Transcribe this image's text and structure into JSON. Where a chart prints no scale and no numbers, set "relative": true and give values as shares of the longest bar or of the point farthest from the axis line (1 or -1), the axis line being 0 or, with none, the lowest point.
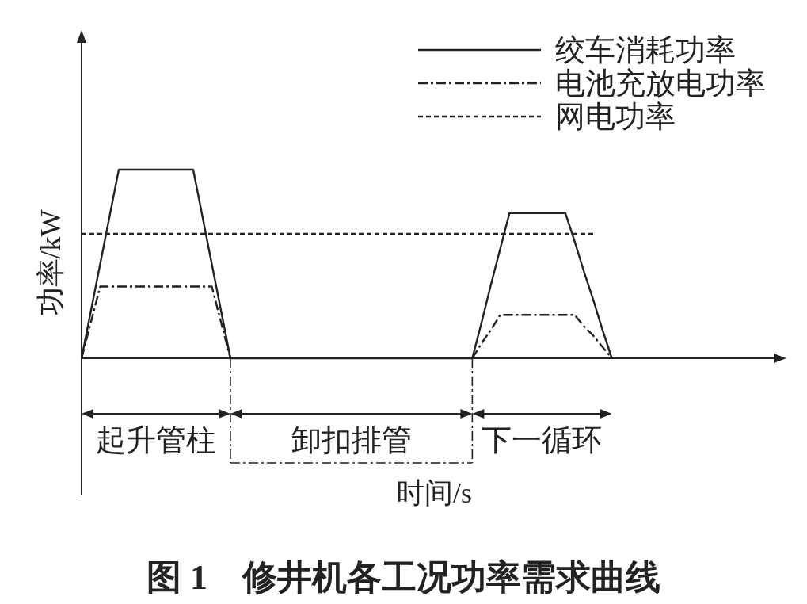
{
  "chart_data": {
    "type": "line",
    "relative": true,
    "title": "图 1　修井机各工况功率需求曲线",
    "xlabel": "时间/s",
    "ylabel": "功率/kW",
    "legend": "top right",
    "categories": [
      null,
      null,
      null,
      null,
      null,
      null,
      null,
      null,
      null,
      null,
      null,
      null,
      null,
      null,
      null,
      null,
      null,
      null,
      null,
      null,
      null,
      null,
      null,
      null,
      null,
      null,
      null,
      null,
      null,
      null,
      null,
      null,
      null,
      null,
      null,
      null,
      null,
      null,
      null,
      null,
      null,
      null,
      null,
      null,
      null,
      null,
      null,
      null,
      null,
      null,
      null,
      null,
      null,
      null,
      null,
      null,
      null,
      null,
      null,
      null,
      null,
      null,
      null,
      null,
      null,
      null,
      null,
      null,
      null,
      null,
      null,
      null,
      null,
      null,
      null,
      null
    ],
    "series": [
      {
        "name": "绞车消耗功率",
        "color": "#222222",
        "line_style": "solid",
        "values": [
          0,
          0.25,
          0.5,
          0.75,
          1,
          1,
          1,
          1,
          1,
          1,
          1,
          1,
          1,
          0.75,
          0.5,
          0.25,
          0,
          0,
          0,
          0,
          0,
          0,
          0,
          0,
          0,
          0,
          0,
          0,
          0,
          0,
          0,
          0,
          0,
          0,
          0,
          0,
          0,
          0,
          0,
          0,
          0,
          0,
          0,
          0.19,
          0.39,
          0.58,
          0.77,
          0.77,
          0.77,
          0.77,
          0.77,
          0.77,
          0.77,
          0.62,
          0.46,
          0.31,
          0.15,
          0,
          null,
          null,
          null,
          null,
          null,
          null,
          null,
          null,
          null,
          null,
          null,
          null,
          null,
          null,
          null,
          null,
          null,
          null
        ]
      },
      {
        "name": "电池充放电功率",
        "color": "#222222",
        "line_style": "dashdot",
        "values": [
          0,
          0.19,
          0.38,
          0.38,
          0.38,
          0.38,
          0.38,
          0.38,
          0.38,
          0.38,
          0.38,
          0.38,
          0.38,
          0.38,
          0.38,
          0.19,
          0,
          null,
          null,
          null,
          null,
          null,
          null,
          null,
          null,
          null,
          null,
          null,
          null,
          null,
          null,
          null,
          null,
          null,
          null,
          null,
          null,
          null,
          null,
          null,
          null,
          null,
          0,
          0.08,
          0.15,
          0.23,
          0.23,
          0.23,
          0.23,
          0.23,
          0.23,
          0.23,
          0.23,
          0.23,
          0.17,
          0.12,
          0.06,
          0,
          null,
          null,
          null,
          null,
          null,
          null,
          null,
          null,
          null,
          null,
          null,
          null,
          null,
          null,
          null,
          null,
          null,
          null
        ]
      },
      {
        "name": "网电功率",
        "color": "#222222",
        "line_style": "dashed",
        "values": [
          0.66,
          0.66,
          0.66,
          0.66,
          0.66,
          0.66,
          0.66,
          0.66,
          0.66,
          0.66,
          0.66,
          0.66,
          0.66,
          0.66,
          0.66,
          0.66,
          0.66,
          0.66,
          0.66,
          0.66,
          0.66,
          0.66,
          0.66,
          0.66,
          0.66,
          0.66,
          0.66,
          0.66,
          0.66,
          0.66,
          0.66,
          0.66,
          0.66,
          0.66,
          0.66,
          0.66,
          0.66,
          0.66,
          0.66,
          0.66,
          0.66,
          0.66,
          0.66,
          0.66,
          0.66,
          0.66,
          0.66,
          0.66,
          0.66,
          0.66,
          0.66,
          0.66,
          0.66,
          0.66,
          0.66,
          0.66,
          null,
          null,
          null,
          null,
          null,
          null,
          null,
          null,
          null,
          null,
          null,
          null,
          null,
          null,
          null,
          null,
          null,
          null,
          null,
          null
        ]
      }
    ],
    "annotations": [
      "起升管柱",
      "卸扣排管",
      "下一循环"
    ]
  }
}
